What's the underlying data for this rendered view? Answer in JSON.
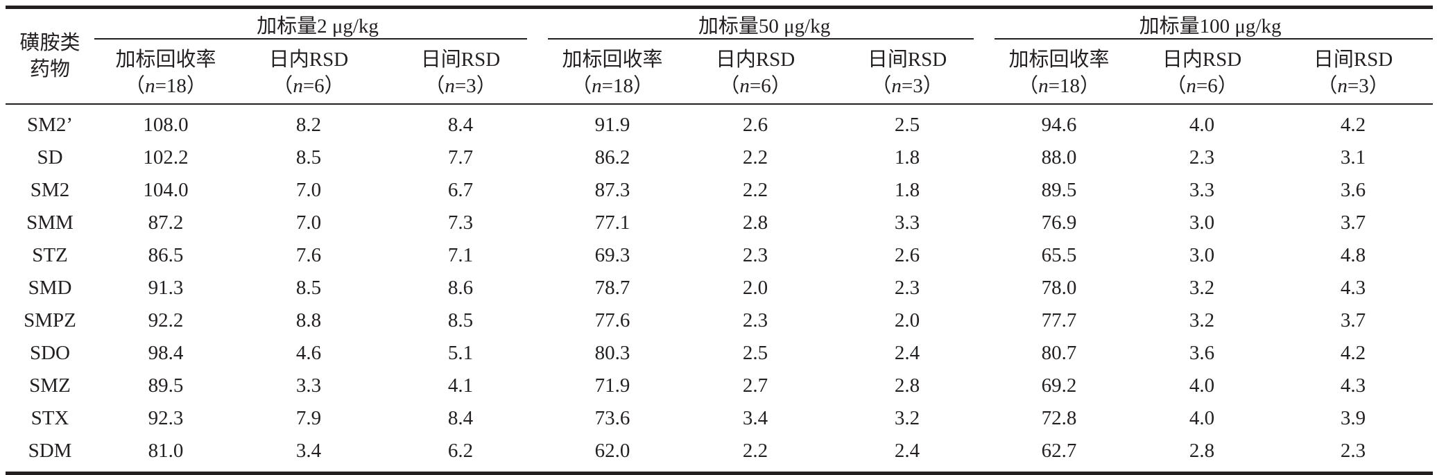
{
  "table": {
    "drug_header": [
      "磺胺类",
      "药物"
    ],
    "groups": [
      {
        "label": "加标量2 μg/kg"
      },
      {
        "label": "加标量50 μg/kg"
      },
      {
        "label": "加标量100 μg/kg"
      }
    ],
    "sub_headers": [
      {
        "line1": "加标回收率",
        "paren_open": "（",
        "n": "n",
        "eq": "=18",
        "paren_close": "）"
      },
      {
        "line1": "日内RSD",
        "paren_open": "（",
        "n": "n",
        "eq": "=6",
        "paren_close": "）"
      },
      {
        "line1": "日间RSD",
        "paren_open": "（",
        "n": "n",
        "eq": "=3",
        "paren_close": "）"
      }
    ],
    "rows": [
      {
        "drug": "SM2’",
        "values": [
          "108.0",
          "8.2",
          "8.4",
          "91.9",
          "2.6",
          "2.5",
          "94.6",
          "4.0",
          "4.2"
        ]
      },
      {
        "drug": "SD",
        "values": [
          "102.2",
          "8.5",
          "7.7",
          "86.2",
          "2.2",
          "1.8",
          "88.0",
          "2.3",
          "3.1"
        ]
      },
      {
        "drug": "SM2",
        "values": [
          "104.0",
          "7.0",
          "6.7",
          "87.3",
          "2.2",
          "1.8",
          "89.5",
          "3.3",
          "3.6"
        ]
      },
      {
        "drug": "SMM",
        "values": [
          "87.2",
          "7.0",
          "7.3",
          "77.1",
          "2.8",
          "3.3",
          "76.9",
          "3.0",
          "3.7"
        ]
      },
      {
        "drug": "STZ",
        "values": [
          "86.5",
          "7.6",
          "7.1",
          "69.3",
          "2.3",
          "2.6",
          "65.5",
          "3.0",
          "4.8"
        ]
      },
      {
        "drug": "SMD",
        "values": [
          "91.3",
          "8.5",
          "8.6",
          "78.7",
          "2.0",
          "2.3",
          "78.0",
          "3.2",
          "4.3"
        ]
      },
      {
        "drug": "SMPZ",
        "values": [
          "92.2",
          "8.8",
          "8.5",
          "77.6",
          "2.3",
          "2.0",
          "77.7",
          "3.2",
          "3.7"
        ]
      },
      {
        "drug": "SDO",
        "values": [
          "98.4",
          "4.6",
          "5.1",
          "80.3",
          "2.5",
          "2.4",
          "80.7",
          "3.6",
          "4.2"
        ]
      },
      {
        "drug": "SMZ",
        "values": [
          "89.5",
          "3.3",
          "4.1",
          "71.9",
          "2.7",
          "2.8",
          "69.2",
          "4.0",
          "4.3"
        ]
      },
      {
        "drug": "STX",
        "values": [
          "92.3",
          "7.9",
          "8.4",
          "73.6",
          "3.4",
          "3.2",
          "72.8",
          "4.0",
          "3.9"
        ]
      },
      {
        "drug": "SDM",
        "values": [
          "81.0",
          "3.4",
          "6.2",
          "62.0",
          "2.2",
          "2.4",
          "62.7",
          "2.8",
          "2.3"
        ]
      }
    ]
  }
}
